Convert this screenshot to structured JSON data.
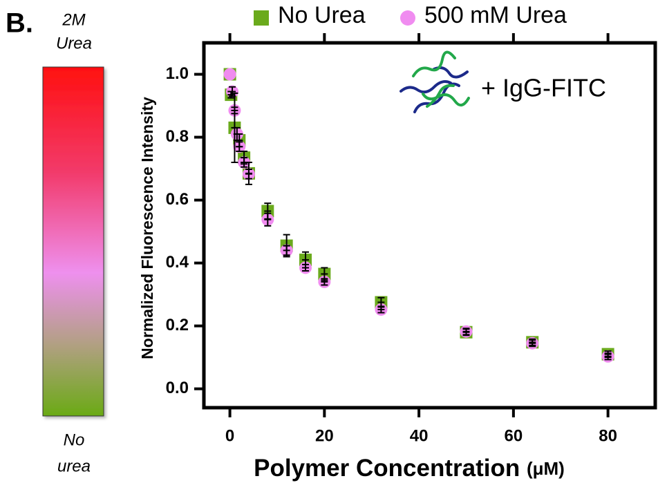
{
  "panel_label": "B.",
  "colorbar": {
    "top_label": [
      "2M",
      "Urea"
    ],
    "bottom_label": [
      "No",
      "urea"
    ]
  },
  "chart_data": {
    "type": "scatter",
    "annotation": "+ IgG-FITC",
    "xlabel": "Polymer Concentration",
    "xlabel_unit": "(μM)",
    "ylabel": "Normalized Fluorescence Intensity",
    "xlim": [
      -5.5,
      90
    ],
    "ylim": [
      -0.06,
      1.1
    ],
    "xticks": [
      0,
      20,
      40,
      60,
      80
    ],
    "yticks": [
      {
        "value": 0,
        "label": "0.0"
      },
      {
        "value": 0.2,
        "label": "0.2"
      },
      {
        "value": 0.4,
        "label": "0.4"
      },
      {
        "value": 0.6,
        "label": "0.6"
      },
      {
        "value": 0.8,
        "label": "0.8"
      },
      {
        "value": 1,
        "label": "1.0"
      }
    ],
    "series": [
      {
        "name": "No Urea",
        "color": "#6aaa1c",
        "marker": "square",
        "x": [
          0,
          0.25,
          1,
          2,
          3,
          4,
          8,
          12,
          16,
          20,
          32,
          50,
          64,
          80
        ],
        "values": [
          1.0,
          0.935,
          0.83,
          0.79,
          0.735,
          0.685,
          0.565,
          0.455,
          0.41,
          0.365,
          0.275,
          0.18,
          0.148,
          0.11
        ],
        "errors": [
          0,
          0.01,
          0.11,
          0.02,
          0.02,
          0.035,
          0.025,
          0.035,
          0.025,
          0.02,
          0.015,
          0.01,
          0.01,
          0.01
        ]
      },
      {
        "name": "500 mM Urea",
        "color": "#f08cf0",
        "marker": "circle",
        "x": [
          0,
          0.5,
          1,
          1.5,
          2,
          3,
          4,
          8,
          12,
          16,
          20,
          32,
          50,
          64,
          80
        ],
        "values": [
          1.0,
          0.945,
          0.885,
          0.81,
          0.77,
          0.72,
          0.683,
          0.538,
          0.44,
          0.385,
          0.34,
          0.252,
          0.182,
          0.145,
          0.103
        ],
        "errors": [
          0,
          0.015,
          0.01,
          0.02,
          0.015,
          0.015,
          0.015,
          0.02,
          0.015,
          0.01,
          0.01,
          0.01,
          0.01,
          0.01,
          0.01
        ]
      }
    ]
  }
}
